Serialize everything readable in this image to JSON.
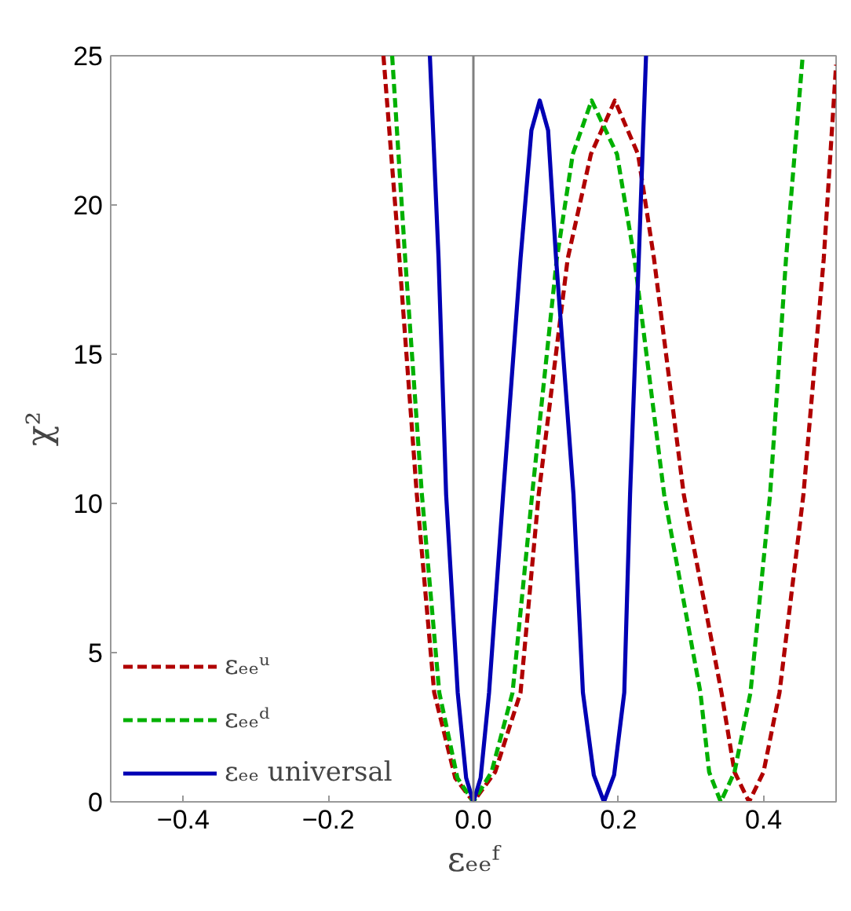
{
  "chart_data": {
    "type": "line",
    "xlabel": "εₑₑᶠ",
    "ylabel": "χ²",
    "xlim": [
      -0.5,
      0.5
    ],
    "ylim": [
      0,
      25
    ],
    "xticks": [
      {
        "value": -0.4,
        "label": "−0.4"
      },
      {
        "value": -0.2,
        "label": "−0.2"
      },
      {
        "value": 0,
        "label": "0.0"
      },
      {
        "value": 0.2,
        "label": "0.2"
      },
      {
        "value": 0.4,
        "label": "0.4"
      }
    ],
    "yticks": [
      0,
      5,
      10,
      15,
      20,
      25
    ],
    "grid": false,
    "legend": "bottom left",
    "marker": "none",
    "ref_lines": [
      {
        "axis": "x",
        "value": 0,
        "color": "#808080"
      }
    ],
    "series": [
      {
        "name": "εₑₑᵘ",
        "color": "#b00000",
        "line_style": "dashed",
        "x": [
          -0.124,
          -0.102,
          -0.078,
          -0.054,
          -0.025,
          0,
          0.03,
          0.065,
          0.09,
          0.13,
          0.162,
          0.195,
          0.227,
          0.249,
          0.29,
          0.342,
          0.36,
          0.38,
          0.4,
          0.422,
          0.455,
          0.483,
          0.5
        ],
        "values": [
          25,
          18.2,
          10.3,
          3.66,
          0.8,
          0,
          1.0,
          3.66,
          10.3,
          18.2,
          21.7,
          23.5,
          21.7,
          18.2,
          10.3,
          3.66,
          1.0,
          0,
          1.0,
          3.66,
          10.3,
          18.2,
          24.7
        ]
      },
      {
        "name": "εₑₑᵈ",
        "color": "#00b000",
        "line_style": "dashed",
        "x": [
          -0.112,
          -0.094,
          -0.071,
          -0.047,
          -0.022,
          0,
          0.025,
          0.054,
          0.081,
          0.115,
          0.137,
          0.163,
          0.198,
          0.222,
          0.263,
          0.313,
          0.325,
          0.341,
          0.36,
          0.382,
          0.409,
          0.431,
          0.454
        ],
        "values": [
          25,
          18.2,
          10.3,
          3.66,
          0.8,
          0,
          1.0,
          3.66,
          10.3,
          18.2,
          21.7,
          23.5,
          21.7,
          18.2,
          10.3,
          3.66,
          1.0,
          0,
          1.0,
          3.66,
          10.3,
          18.2,
          25
        ]
      },
      {
        "name": "εₑₑ universal",
        "color": "#0000b4",
        "line_style": "solid",
        "x": [
          -0.06,
          -0.048,
          -0.0376,
          -0.0216,
          -0.01,
          0,
          0.01,
          0.0216,
          0.041,
          0.065,
          0.08,
          0.0915,
          0.103,
          0.114,
          0.138,
          0.151,
          0.166,
          0.18,
          0.194,
          0.208,
          0.216,
          0.228,
          0.238
        ],
        "values": [
          25,
          18.2,
          10.3,
          3.66,
          0.8,
          0,
          0.8,
          3.66,
          10.3,
          18.2,
          22.5,
          23.5,
          22.5,
          18.2,
          10.3,
          3.66,
          0.9,
          0,
          0.9,
          3.66,
          10.3,
          18.2,
          25
        ]
      }
    ]
  }
}
